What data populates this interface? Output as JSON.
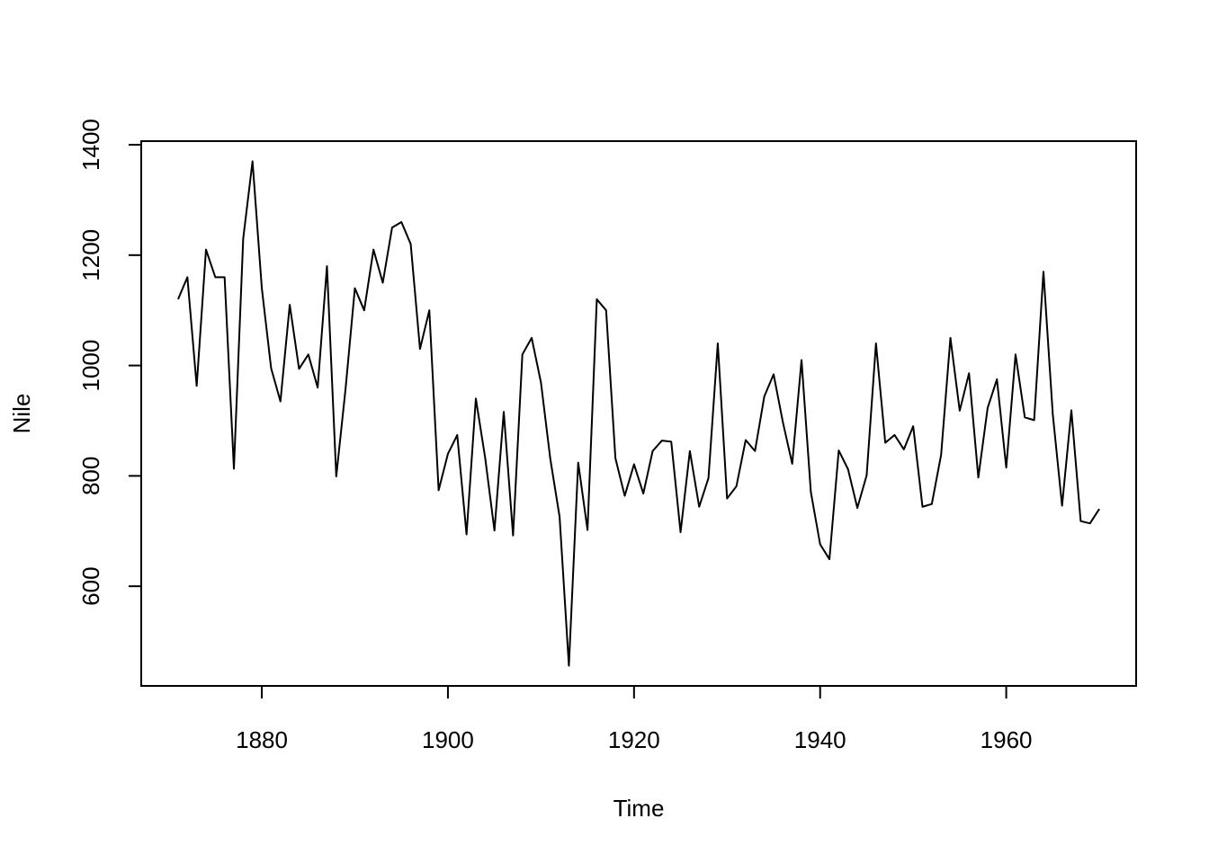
{
  "chart_data": {
    "type": "line",
    "x_label": "Time",
    "y_label": "Nile",
    "x": [
      1871,
      1872,
      1873,
      1874,
      1875,
      1876,
      1877,
      1878,
      1879,
      1880,
      1881,
      1882,
      1883,
      1884,
      1885,
      1886,
      1887,
      1888,
      1889,
      1890,
      1891,
      1892,
      1893,
      1894,
      1895,
      1896,
      1897,
      1898,
      1899,
      1900,
      1901,
      1902,
      1903,
      1904,
      1905,
      1906,
      1907,
      1908,
      1909,
      1910,
      1911,
      1912,
      1913,
      1914,
      1915,
      1916,
      1917,
      1918,
      1919,
      1920,
      1921,
      1922,
      1923,
      1924,
      1925,
      1926,
      1927,
      1928,
      1929,
      1930,
      1931,
      1932,
      1933,
      1934,
      1935,
      1936,
      1937,
      1938,
      1939,
      1940,
      1941,
      1942,
      1943,
      1944,
      1945,
      1946,
      1947,
      1948,
      1949,
      1950,
      1951,
      1952,
      1953,
      1954,
      1955,
      1956,
      1957,
      1958,
      1959,
      1960,
      1961,
      1962,
      1963,
      1964,
      1965,
      1966,
      1967,
      1968,
      1969,
      1970
    ],
    "values": [
      1120,
      1160,
      963,
      1210,
      1160,
      1160,
      813,
      1230,
      1370,
      1140,
      995,
      935,
      1110,
      994,
      1020,
      960,
      1180,
      799,
      958,
      1140,
      1100,
      1210,
      1150,
      1250,
      1260,
      1220,
      1030,
      1100,
      774,
      840,
      874,
      694,
      940,
      833,
      701,
      916,
      692,
      1020,
      1050,
      969,
      831,
      726,
      456,
      824,
      702,
      1120,
      1100,
      832,
      764,
      821,
      768,
      845,
      864,
      862,
      698,
      845,
      744,
      796,
      1040,
      759,
      781,
      865,
      845,
      944,
      984,
      897,
      822,
      1010,
      771,
      676,
      649,
      846,
      812,
      742,
      801,
      1040,
      860,
      874,
      848,
      890,
      744,
      749,
      838,
      1050,
      918,
      986,
      797,
      923,
      975,
      815,
      1020,
      906,
      901,
      1170,
      912,
      746,
      919,
      718,
      714,
      740
    ],
    "color": "#000000",
    "xlim": [
      1867.04,
      1973.96
    ],
    "xticks": [
      1880,
      1900,
      1920,
      1940,
      1960
    ],
    "ylim": [
      419.44,
      1406.56
    ],
    "yticks": [
      600,
      800,
      1000,
      1200,
      1400
    ]
  }
}
